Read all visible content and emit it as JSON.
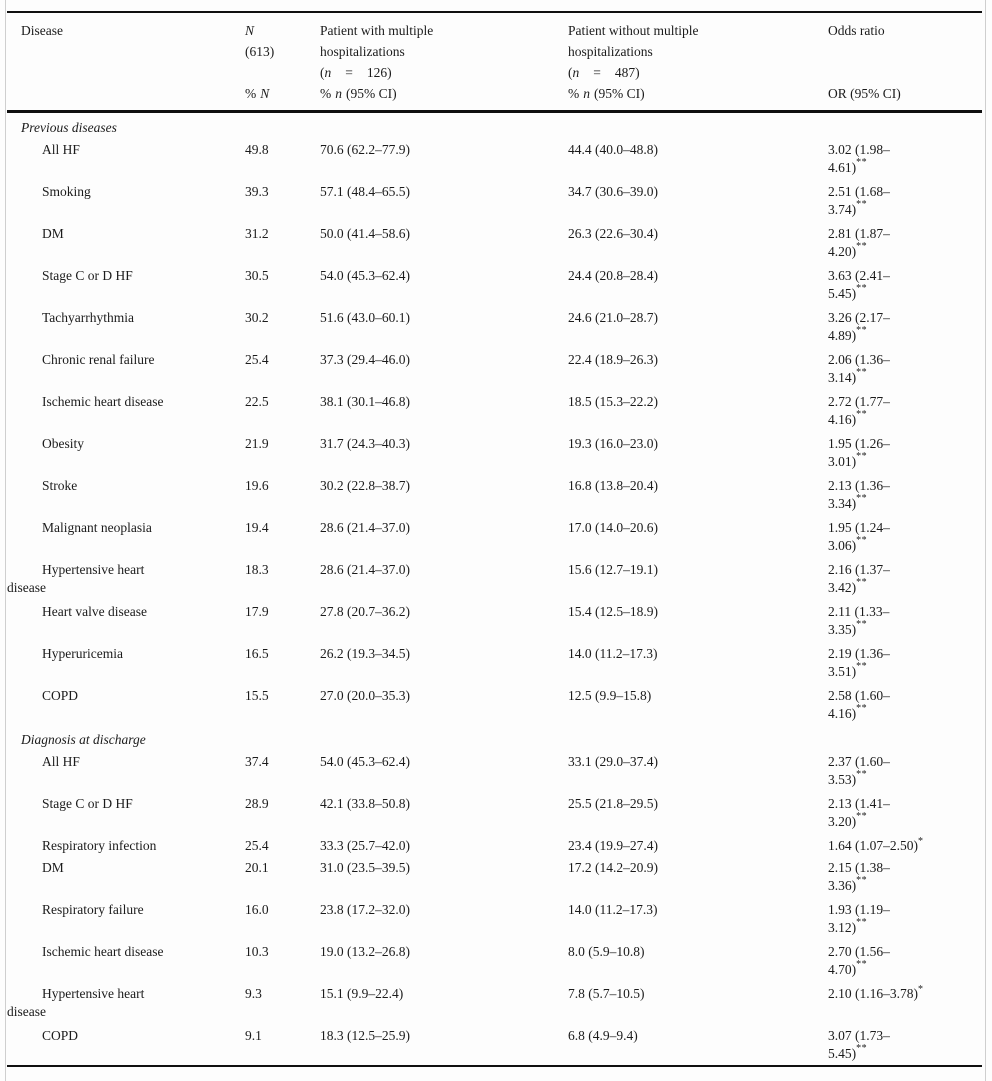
{
  "table": {
    "header": {
      "col1": "Disease",
      "col2": {
        "symbol": "N",
        "total": "(613)",
        "sub_pct": "%",
        "sub_symbol": "N"
      },
      "col3": {
        "line1": "Patient with multiple",
        "line2": "hospitalizations",
        "n_open": "(",
        "n_var": "n",
        "n_eq": "=",
        "n_val": "126)",
        "sub_pre": "%",
        "sub_var": "n",
        "sub_post": "(95% CI)"
      },
      "col4": {
        "line1": "Patient without multiple",
        "line2": "hospitalizations",
        "n_open": "(",
        "n_var": "n",
        "n_eq": "=",
        "n_val": "487)",
        "sub_pre": "%",
        "sub_var": "n",
        "sub_post": "(95% CI)"
      },
      "col5": {
        "line1": "Odds ratio",
        "sub": "OR (95% CI)"
      }
    },
    "sections": [
      {
        "title": "Previous diseases",
        "rows": [
          {
            "disease": "All HF",
            "pct_n": "49.8",
            "with_ci": "70.6 (62.2–77.9)",
            "without_ci": "44.4 (40.0–48.8)",
            "or_line1": "3.02 (1.98–",
            "or_line2": "4.61)",
            "stars": "**"
          },
          {
            "disease": "Smoking",
            "pct_n": "39.3",
            "with_ci": "57.1 (48.4–65.5)",
            "without_ci": "34.7 (30.6–39.0)",
            "or_line1": "2.51 (1.68–",
            "or_line2": "3.74)",
            "stars": "**"
          },
          {
            "disease": "DM",
            "pct_n": "31.2",
            "with_ci": "50.0 (41.4–58.6)",
            "without_ci": "26.3 (22.6–30.4)",
            "or_line1": "2.81 (1.87–",
            "or_line2": "4.20)",
            "stars": "**"
          },
          {
            "disease": "Stage C or D HF",
            "pct_n": "30.5",
            "with_ci": "54.0 (45.3–62.4)",
            "without_ci": "24.4 (20.8–28.4)",
            "or_line1": "3.63 (2.41–",
            "or_line2": "5.45)",
            "stars": "**"
          },
          {
            "disease": "Tachyarrhythmia",
            "pct_n": "30.2",
            "with_ci": "51.6 (43.0–60.1)",
            "without_ci": "24.6 (21.0–28.7)",
            "or_line1": "3.26 (2.17–",
            "or_line2": "4.89)",
            "stars": "**"
          },
          {
            "disease": "Chronic renal failure",
            "pct_n": "25.4",
            "with_ci": "37.3 (29.4–46.0)",
            "without_ci": "22.4 (18.9–26.3)",
            "or_line1": "2.06 (1.36–",
            "or_line2": "3.14)",
            "stars": "**"
          },
          {
            "disease": "Ischemic heart disease",
            "pct_n": "22.5",
            "with_ci": "38.1 (30.1–46.8)",
            "without_ci": "18.5 (15.3–22.2)",
            "or_line1": "2.72 (1.77–",
            "or_line2": "4.16)",
            "stars": "**"
          },
          {
            "disease": "Obesity",
            "pct_n": "21.9",
            "with_ci": "31.7 (24.3–40.3)",
            "without_ci": "19.3 (16.0–23.0)",
            "or_line1": "1.95 (1.26–",
            "or_line2": "3.01)",
            "stars": "**"
          },
          {
            "disease": "Stroke",
            "pct_n": "19.6",
            "with_ci": "30.2 (22.8–38.7)",
            "without_ci": "16.8 (13.8–20.4)",
            "or_line1": "2.13 (1.36–",
            "or_line2": "3.34)",
            "stars": "**"
          },
          {
            "disease": "Malignant neoplasia",
            "pct_n": "19.4",
            "with_ci": "28.6 (21.4–37.0)",
            "without_ci": "17.0 (14.0–20.6)",
            "or_line1": "1.95 (1.24–",
            "or_line2": "3.06)",
            "stars": "**"
          },
          {
            "disease": "Hypertensive heart",
            "disease_line2": "disease",
            "pct_n": "18.3",
            "with_ci": "28.6 (21.4–37.0)",
            "without_ci": "15.6 (12.7–19.1)",
            "or_line1": "2.16 (1.37–",
            "or_line2": "3.42)",
            "stars": "**"
          },
          {
            "disease": "Heart valve disease",
            "pct_n": "17.9",
            "with_ci": "27.8 (20.7–36.2)",
            "without_ci": "15.4 (12.5–18.9)",
            "or_line1": "2.11 (1.33–",
            "or_line2": "3.35)",
            "stars": "**"
          },
          {
            "disease": "Hyperuricemia",
            "pct_n": "16.5",
            "with_ci": "26.2 (19.3–34.5)",
            "without_ci": "14.0 (11.2–17.3)",
            "or_line1": "2.19 (1.36–",
            "or_line2": "3.51)",
            "stars": "**"
          },
          {
            "disease": "COPD",
            "pct_n": "15.5",
            "with_ci": "27.0 (20.0–35.3)",
            "without_ci": "12.5 (9.9–15.8)",
            "or_line1": "2.58 (1.60–",
            "or_line2": "4.16)",
            "stars": "**"
          }
        ]
      },
      {
        "title": "Diagnosis at discharge",
        "rows": [
          {
            "disease": "All HF",
            "pct_n": "37.4",
            "with_ci": "54.0 (45.3–62.4)",
            "without_ci": "33.1 (29.0–37.4)",
            "or_line1": "2.37 (1.60–",
            "or_line2": "3.53)",
            "stars": "**"
          },
          {
            "disease": "Stage C or D HF",
            "pct_n": "28.9",
            "with_ci": "42.1 (33.8–50.8)",
            "without_ci": "25.5 (21.8–29.5)",
            "or_line1": "2.13 (1.41–",
            "or_line2": "3.20)",
            "stars": "**"
          },
          {
            "disease": "Respiratory infection",
            "pct_n": "25.4",
            "with_ci": "33.3 (25.7–42.0)",
            "without_ci": "23.4 (19.9–27.4)",
            "or_line1": "1.64 (1.07–2.50)",
            "or_line2": "",
            "stars": "*"
          },
          {
            "disease": "DM",
            "pct_n": "20.1",
            "with_ci": "31.0 (23.5–39.5)",
            "without_ci": "17.2 (14.2–20.9)",
            "or_line1": "2.15 (1.38–",
            "or_line2": "3.36)",
            "stars": "**"
          },
          {
            "disease": "Respiratory failure",
            "pct_n": "16.0",
            "with_ci": "23.8 (17.2–32.0)",
            "without_ci": "14.0 (11.2–17.3)",
            "or_line1": "1.93 (1.19–",
            "or_line2": "3.12)",
            "stars": "**"
          },
          {
            "disease": "Ischemic heart disease",
            "pct_n": "10.3",
            "with_ci": "19.0 (13.2–26.8)",
            "without_ci": "8.0 (5.9–10.8)",
            "or_line1": "2.70 (1.56–",
            "or_line2": "4.70)",
            "stars": "**"
          },
          {
            "disease": "Hypertensive heart",
            "disease_line2": "disease",
            "pct_n": "9.3",
            "with_ci": "15.1 (9.9–22.4)",
            "without_ci": "7.8 (5.7–10.5)",
            "or_line1": "2.10 (1.16–3.78)",
            "or_line2": "",
            "stars": "*"
          },
          {
            "disease": "COPD",
            "pct_n": "9.1",
            "with_ci": "18.3 (12.5–25.9)",
            "without_ci": "6.8 (4.9–9.4)",
            "or_line1": "3.07 (1.73–",
            "or_line2": "5.45)",
            "stars": "**"
          }
        ]
      }
    ]
  }
}
